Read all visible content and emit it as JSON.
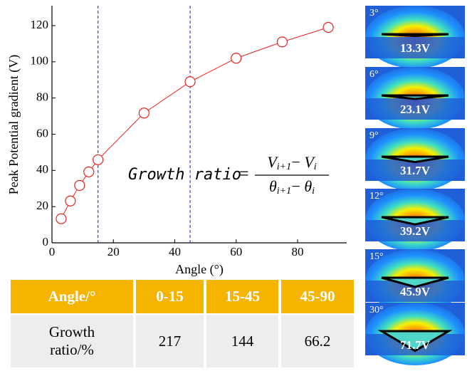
{
  "chart_data": {
    "type": "line",
    "x_label": "Angle (°)",
    "y_label": "Peak Potential gradient (V)",
    "x": [
      3,
      6,
      9,
      12,
      15,
      30,
      45,
      60,
      75,
      90
    ],
    "series": [
      {
        "name": "Peak potential gradient",
        "color": "#e8231f",
        "values": [
          13.3,
          23.1,
          31.7,
          39.2,
          45.9,
          71.7,
          89,
          102,
          111,
          119
        ]
      }
    ],
    "xlim": [
      0,
      96
    ],
    "xticks": [
      0,
      20,
      40,
      60,
      80
    ],
    "ylim": [
      0,
      131
    ],
    "yticks": [
      0,
      20,
      40,
      60,
      80,
      100,
      120
    ],
    "vlines": [
      15,
      45
    ],
    "vline_color": "#3a3af0",
    "formula": {
      "lhs": "Growth ratio",
      "numerator": [
        [
          "V",
          "i+1"
        ],
        [
          "V",
          "i"
        ]
      ],
      "denominator": [
        [
          "θ",
          "i+1"
        ],
        [
          "θ",
          "i"
        ]
      ]
    }
  },
  "table": {
    "header": [
      "Angle/°",
      "0-15",
      "15-45",
      "45-90"
    ],
    "rows": [
      [
        "Growth ratio/%",
        "217",
        "144",
        "66.2"
      ]
    ]
  },
  "panels": [
    {
      "angle": "3°",
      "voltage": "13.3V"
    },
    {
      "angle": "6°",
      "voltage": "23.1V"
    },
    {
      "angle": "9°",
      "voltage": "31.7V"
    },
    {
      "angle": "12°",
      "voltage": "39.2V"
    },
    {
      "angle": "15°",
      "voltage": "45.9V"
    },
    {
      "angle": "30°",
      "voltage": "71.7V"
    }
  ]
}
